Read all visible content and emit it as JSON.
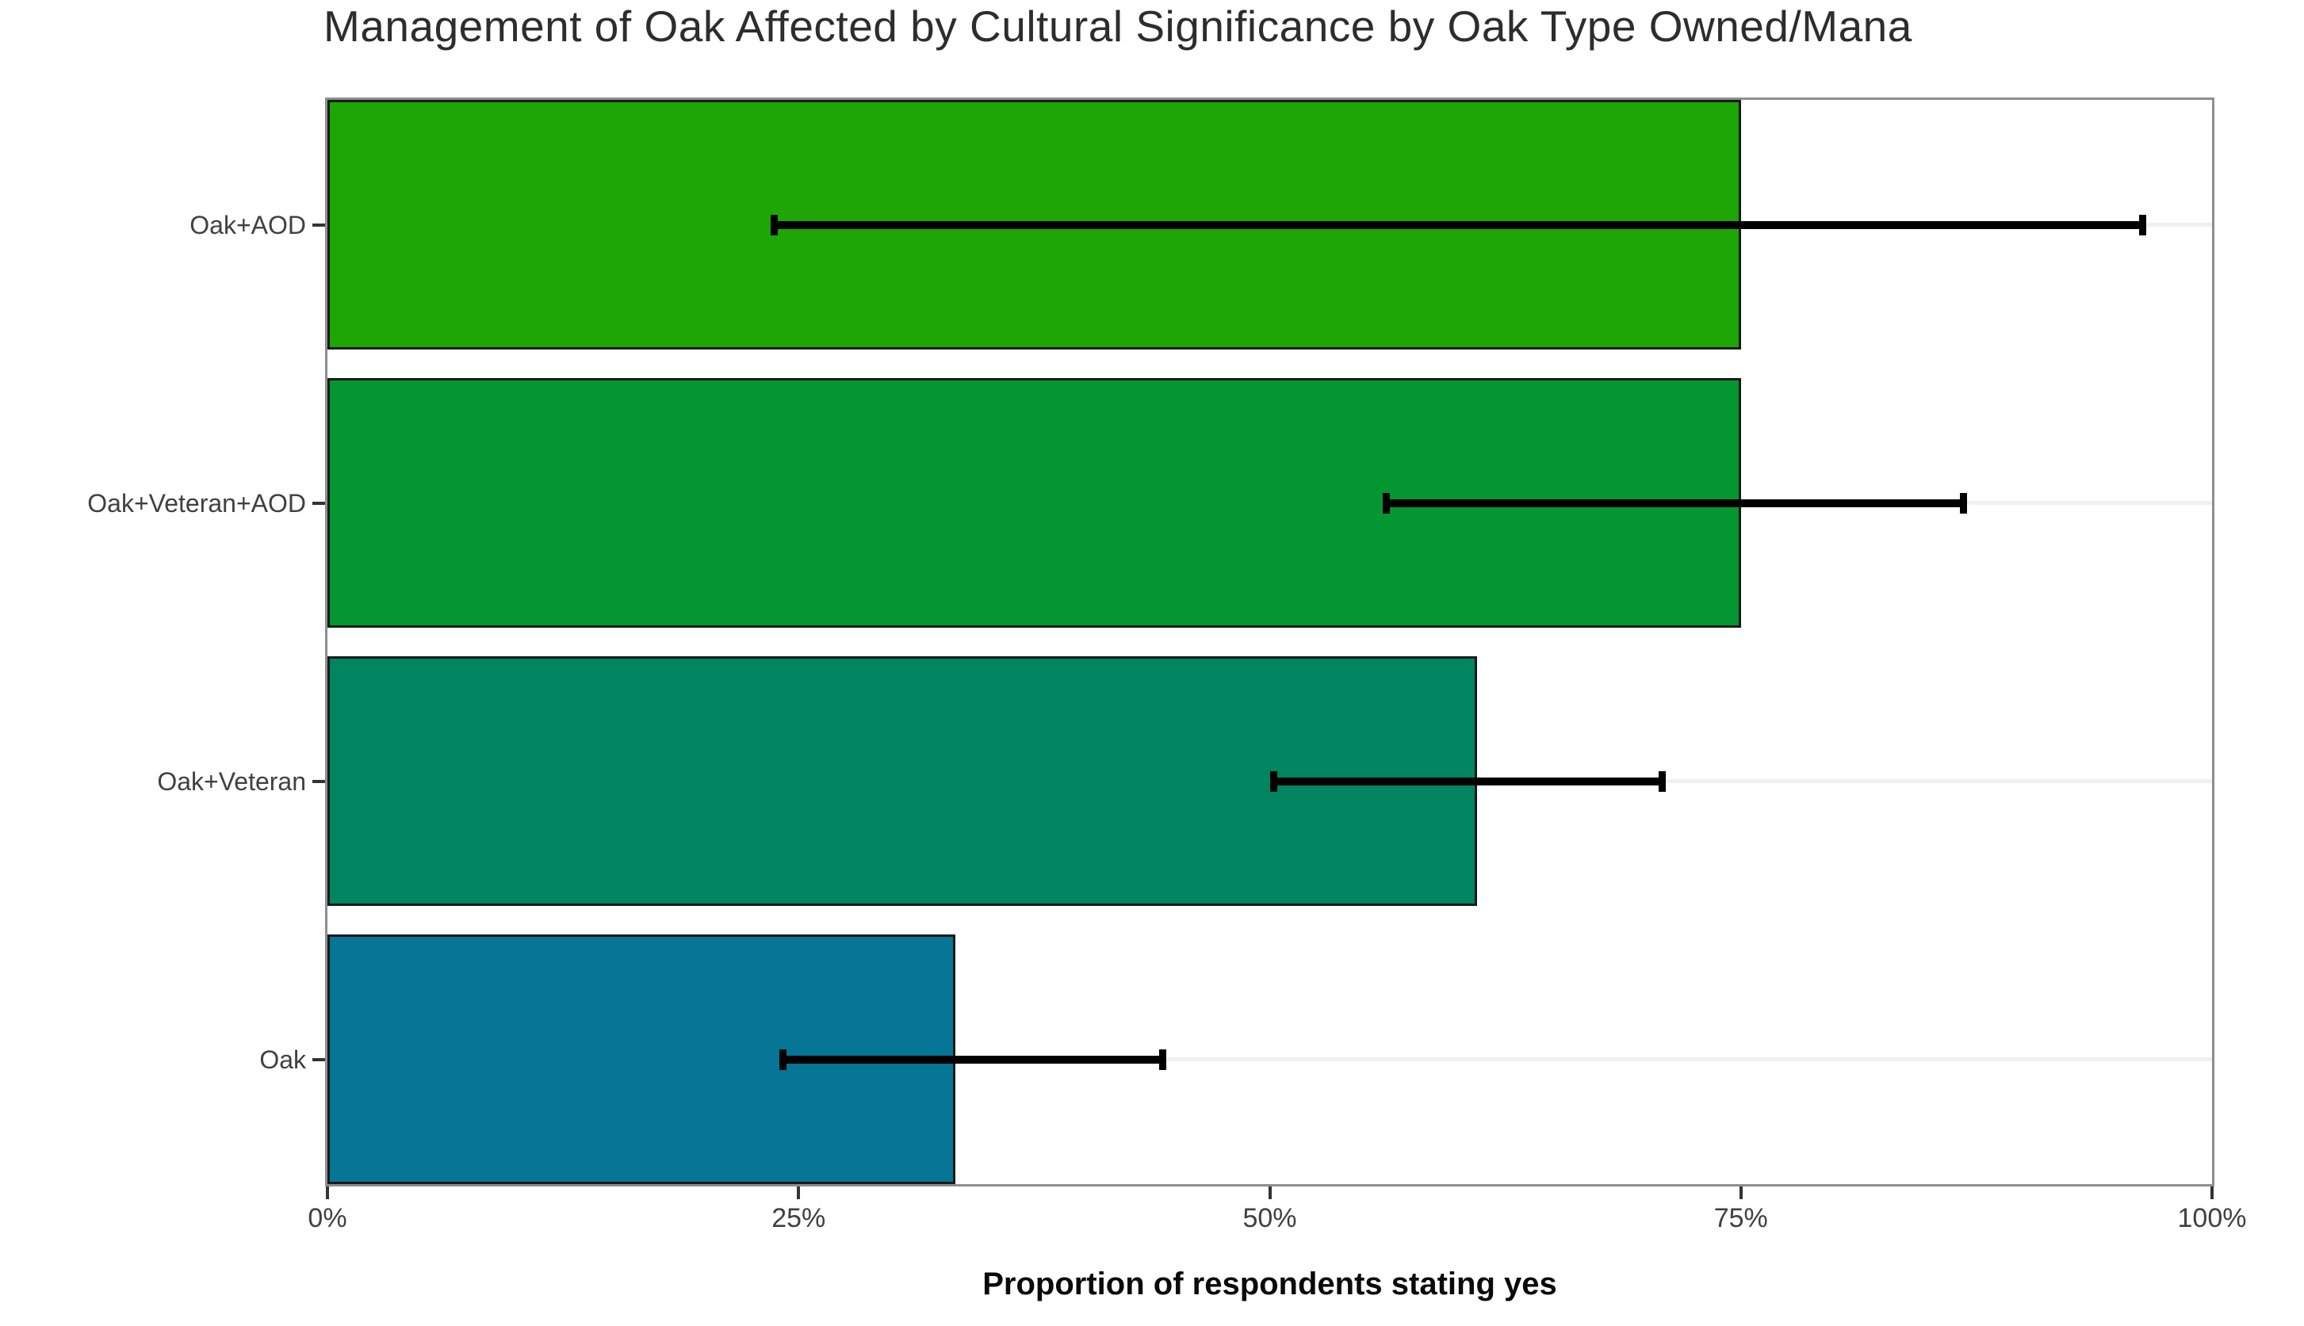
{
  "chart_data": {
    "type": "bar",
    "orientation": "horizontal",
    "title": "Management of Oak Affected by Cultural Significance by Oak Type Owned/Mana",
    "xlabel": "Proportion of respondents stating yes",
    "ylabel": "",
    "categories": [
      "Oak+AOD",
      "Oak+Veteran+AOD",
      "Oak+Veteran",
      "Oak"
    ],
    "values_pct": [
      75,
      75,
      61,
      33.3
    ],
    "error_low_pct": [
      23.5,
      56,
      50,
      24
    ],
    "error_high_pct": [
      96.5,
      87,
      71,
      44.5
    ],
    "bar_colors": [
      "#1ea506",
      "#049630",
      "#008560",
      "#077596"
    ],
    "xlim": [
      0,
      100
    ],
    "x_tick_values": [
      0,
      25,
      50,
      75,
      100
    ],
    "x_tick_labels": [
      "0%",
      "25%",
      "50%",
      "75%",
      "100%"
    ],
    "legend": "none",
    "grid": "faint horizontal gridline at each category center",
    "styles": {
      "bar_border_color": "#1a1a1a",
      "error_bar_color": "#000000",
      "panel_border_color": "#8e8e8e",
      "gridline_color": "#f0f0f0",
      "tick_color": "#333333",
      "tick_label_color": "#404040",
      "title_color": "#2d2d2d",
      "axis_title_color": "#0a0a0a",
      "background": "#ffffff"
    }
  }
}
